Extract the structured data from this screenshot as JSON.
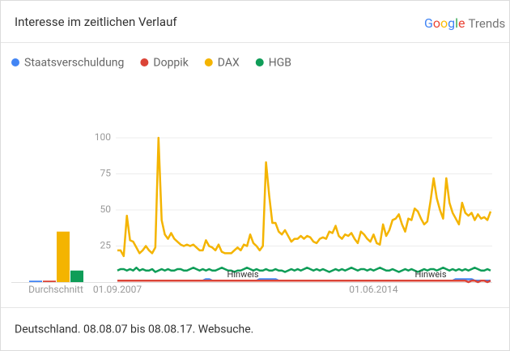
{
  "header": {
    "title": "Interesse im zeitlichen Verlauf",
    "brand": [
      "Google",
      "Trends"
    ]
  },
  "footer": "Deutschland. 08.08.07 bis 08.08.17. Websuche.",
  "chart_data": {
    "type": "line",
    "categories": [
      null,
      null,
      null,
      null,
      null,
      null,
      null,
      null,
      null,
      null,
      null,
      null,
      null,
      null,
      null,
      null,
      null,
      null,
      null,
      null,
      null,
      null,
      null,
      null,
      null,
      null,
      null,
      null,
      null,
      null,
      null,
      null,
      null,
      null,
      null,
      null,
      null,
      null,
      null,
      null,
      null,
      null,
      null,
      null,
      null,
      null,
      null,
      null,
      null,
      null,
      null,
      null,
      null,
      null,
      null,
      null,
      null,
      null,
      null,
      null,
      null,
      null,
      null,
      null,
      null,
      null,
      null,
      null,
      null,
      null,
      null,
      null,
      null,
      null,
      null,
      null,
      null,
      null,
      null,
      null,
      null,
      null,
      null,
      null,
      null,
      null,
      null,
      null,
      null,
      null,
      null,
      null,
      null,
      null,
      null,
      null,
      null,
      null,
      null,
      null,
      null,
      null,
      null,
      null,
      null,
      null,
      null,
      null,
      null,
      null,
      null,
      null,
      null,
      null,
      null,
      null,
      null,
      null,
      null
    ],
    "category_labels": [
      {
        "index": 0,
        "label": "01.09.2007"
      },
      {
        "index": 81,
        "label": "01.06.2014"
      }
    ],
    "ylim": [
      0,
      100
    ],
    "yticks": [
      25,
      50,
      75,
      100
    ],
    "grid": true,
    "annotations": [
      "Hinweis",
      "Hinweis"
    ],
    "average_label": "Durchschnitt",
    "series": [
      {
        "name": "Staatsverschuldung",
        "color": "#4285f4",
        "average": 1,
        "values": [
          1,
          1,
          1,
          1,
          1,
          1,
          1,
          1,
          1,
          1,
          1,
          1,
          1,
          1,
          1,
          1,
          1,
          1,
          1,
          1,
          1,
          1,
          1,
          1,
          1,
          1,
          1,
          1,
          2,
          2,
          1,
          1,
          1,
          1,
          1,
          1,
          1,
          1,
          1,
          1,
          1,
          1,
          1,
          1,
          1,
          2,
          2,
          2,
          2,
          2,
          2,
          1,
          1,
          1,
          1,
          1,
          1,
          1,
          1,
          1,
          1,
          1,
          1,
          1,
          1,
          1,
          1,
          1,
          1,
          1,
          1,
          1,
          1,
          1,
          1,
          1,
          1,
          1,
          1,
          1,
          1,
          1,
          1,
          1,
          1,
          1,
          1,
          1,
          1,
          1,
          1,
          1,
          1,
          1,
          1,
          1,
          1,
          1,
          1,
          1,
          1,
          1,
          1,
          1,
          1,
          1,
          1,
          2,
          2,
          2,
          2,
          2,
          2,
          1,
          1,
          1,
          1,
          1,
          1
        ]
      },
      {
        "name": "Doppik",
        "color": "#db4437",
        "average": 1,
        "values": [
          1,
          1,
          1,
          1,
          1,
          1,
          1,
          1,
          1,
          1,
          1,
          1,
          1,
          1,
          1,
          1,
          1,
          1,
          1,
          1,
          1,
          1,
          1,
          1,
          1,
          1,
          1,
          1,
          1,
          1,
          1,
          1,
          1,
          1,
          1,
          1,
          1,
          1,
          1,
          1,
          1,
          1,
          1,
          1,
          1,
          1,
          1,
          1,
          1,
          1,
          1,
          1,
          1,
          1,
          1,
          1,
          1,
          1,
          1,
          1,
          1,
          1,
          1,
          1,
          1,
          1,
          1,
          1,
          1,
          1,
          1,
          1,
          1,
          1,
          1,
          1,
          1,
          1,
          1,
          1,
          1,
          1,
          1,
          1,
          1,
          1,
          1,
          1,
          1,
          1,
          1,
          1,
          1,
          1,
          1,
          1,
          1,
          1,
          1,
          1,
          1,
          1,
          1,
          1,
          1,
          1,
          1,
          1,
          1,
          1,
          1,
          0,
          1,
          1,
          0,
          1,
          1,
          0,
          1
        ]
      },
      {
        "name": "DAX",
        "color": "#f4b400",
        "average": 35,
        "values": [
          22,
          22,
          18,
          46,
          29,
          28,
          24,
          20,
          22,
          25,
          22,
          20,
          24,
          100,
          43,
          33,
          30,
          34,
          30,
          28,
          26,
          25,
          26,
          25,
          26,
          24,
          22,
          22,
          29,
          25,
          24,
          22,
          26,
          21,
          20,
          20,
          20,
          22,
          24,
          22,
          26,
          25,
          33,
          27,
          25,
          22,
          25,
          83,
          60,
          41,
          41,
          35,
          33,
          36,
          32,
          28,
          30,
          30,
          32,
          30,
          32,
          31,
          28,
          27,
          30,
          31,
          30,
          35,
          34,
          39,
          32,
          30,
          33,
          32,
          34,
          30,
          27,
          35,
          33,
          30,
          28,
          33,
          27,
          26,
          40,
          32,
          36,
          43,
          44,
          47,
          40,
          35,
          44,
          43,
          51,
          49,
          44,
          40,
          42,
          56,
          72,
          58,
          50,
          44,
          72,
          55,
          48,
          44,
          40,
          55,
          48,
          46,
          48,
          43,
          47,
          44,
          45,
          43,
          49
        ]
      },
      {
        "name": "HGB",
        "color": "#0f9d58",
        "average": 8,
        "values": [
          8,
          9,
          9,
          8,
          9,
          8,
          10,
          8,
          9,
          8,
          8,
          9,
          7,
          8,
          9,
          8,
          9,
          8,
          8,
          9,
          9,
          8,
          8,
          9,
          10,
          9,
          8,
          9,
          8,
          9,
          8,
          8,
          9,
          10,
          9,
          8,
          8,
          7,
          8,
          8,
          9,
          10,
          9,
          8,
          9,
          8,
          8,
          9,
          8,
          8,
          9,
          8,
          8,
          7,
          8,
          9,
          8,
          9,
          8,
          9,
          10,
          9,
          8,
          9,
          8,
          9,
          8,
          7,
          8,
          9,
          8,
          9,
          8,
          9,
          10,
          9,
          8,
          9,
          9,
          8,
          9,
          8,
          9,
          10,
          9,
          8,
          8,
          9,
          8,
          7,
          8,
          9,
          8,
          9,
          8,
          7,
          8,
          9,
          8,
          9,
          9,
          8,
          9,
          10,
          9,
          8,
          9,
          8,
          9,
          8,
          9,
          8,
          9,
          10,
          9,
          8,
          8,
          9,
          8
        ]
      }
    ]
  }
}
